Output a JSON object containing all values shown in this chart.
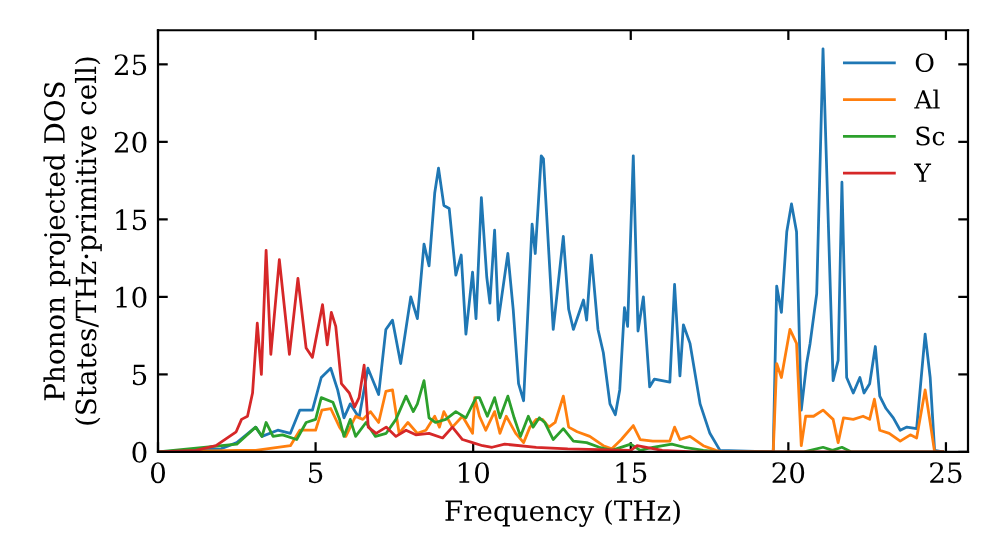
{
  "chart_data": {
    "type": "line",
    "xlabel": "Frequency (THz)",
    "ylabel": "Phonon projected DOS\n(States/THz·primitive cell)",
    "xlim": [
      0,
      25.7
    ],
    "ylim": [
      0,
      27.2
    ],
    "xticks": [
      0,
      5,
      10,
      15,
      20,
      25
    ],
    "yticks": [
      0,
      5,
      10,
      15,
      20,
      25
    ],
    "grid": false,
    "legend": "top right",
    "marker": "none",
    "line_style": "solid",
    "series": [
      {
        "name": "O",
        "color": "#1f77b4",
        "x": [
          0,
          1,
          2,
          2.5,
          3.1,
          3.3,
          3.8,
          4.2,
          4.5,
          4.9,
          5.18,
          5.48,
          5.7,
          5.9,
          6.1,
          6.38,
          6.66,
          7.0,
          7.23,
          7.44,
          7.7,
          8.02,
          8.23,
          8.44,
          8.6,
          8.78,
          8.9,
          9.07,
          9.24,
          9.45,
          9.62,
          9.77,
          9.98,
          10.09,
          10.26,
          10.43,
          10.53,
          10.68,
          10.8,
          11.1,
          11.27,
          11.44,
          11.6,
          11.87,
          11.97,
          12.16,
          12.23,
          12.54,
          12.86,
          13.03,
          13.18,
          13.5,
          13.6,
          13.75,
          13.96,
          14.13,
          14.34,
          14.51,
          14.65,
          14.8,
          14.9,
          15.08,
          15.23,
          15.4,
          15.6,
          15.75,
          16.24,
          16.39,
          16.56,
          16.67,
          16.88,
          17.2,
          17.51,
          17.83,
          19.52,
          19.63,
          19.78,
          19.95,
          20.1,
          20.26,
          20.41,
          20.58,
          20.69,
          20.9,
          21.1,
          21.42,
          21.58,
          21.7,
          21.85,
          22.06,
          22.27,
          22.4,
          22.58,
          22.76,
          22.9,
          23.1,
          23.33,
          23.55,
          23.76,
          24.07,
          24.34,
          24.5,
          24.64,
          24.9
        ],
        "values": [
          0,
          0.1,
          0.2,
          0.6,
          1.6,
          1.0,
          1.4,
          1.2,
          2.7,
          2.7,
          4.8,
          5.4,
          4.0,
          2.2,
          3.1,
          2.2,
          5.4,
          3.7,
          7.9,
          8.5,
          5.7,
          10.0,
          8.6,
          13.4,
          12.0,
          16.7,
          18.3,
          15.9,
          15.7,
          11.4,
          12.7,
          7.6,
          11.6,
          8.6,
          16.4,
          11.3,
          9.6,
          14.3,
          8.5,
          12.8,
          9.2,
          4.4,
          3.3,
          14.7,
          12.8,
          19.1,
          18.9,
          7.9,
          13.9,
          9.2,
          7.9,
          9.8,
          8.5,
          12.7,
          7.9,
          6.4,
          3.1,
          2.4,
          4.0,
          9.3,
          8.1,
          19.1,
          7.8,
          10.0,
          4.2,
          4.7,
          4.5,
          10.8,
          4.9,
          8.2,
          7.0,
          3.1,
          1.2,
          0.1,
          0,
          10.7,
          9.0,
          14.2,
          16.0,
          14.2,
          2.7,
          5.7,
          7.0,
          10.2,
          26.0,
          4.6,
          5.9,
          17.4,
          4.8,
          3.8,
          4.8,
          3.8,
          4.4,
          6.8,
          3.6,
          2.8,
          2.2,
          1.4,
          1.6,
          1.5,
          7.6,
          4.8,
          0.1,
          0
        ]
      },
      {
        "name": "Al",
        "color": "#ff7f0e",
        "x": [
          0,
          2.5,
          3.1,
          4.2,
          4.5,
          5.0,
          5.2,
          5.48,
          5.76,
          5.96,
          6.27,
          6.5,
          6.74,
          7.0,
          7.23,
          7.44,
          7.65,
          7.93,
          8.23,
          8.5,
          8.78,
          8.93,
          9.07,
          9.34,
          9.66,
          9.98,
          10.05,
          10.2,
          10.4,
          10.68,
          10.85,
          11.05,
          11.35,
          11.6,
          11.8,
          12.0,
          12.2,
          12.4,
          12.6,
          12.86,
          13.03,
          13.3,
          13.7,
          14.13,
          14.4,
          14.7,
          15.08,
          15.3,
          15.7,
          16.24,
          16.39,
          16.56,
          16.88,
          17.3,
          17.7,
          17.9,
          19.52,
          19.63,
          19.78,
          20.05,
          20.26,
          20.41,
          20.55,
          20.8,
          21.1,
          21.42,
          21.58,
          21.75,
          22.06,
          22.37,
          22.58,
          22.73,
          22.9,
          23.2,
          23.55,
          23.87,
          24.07,
          24.34,
          24.5,
          24.64,
          24.9
        ],
        "values": [
          0,
          0.1,
          0.1,
          0.4,
          1.4,
          1.4,
          2.7,
          2.8,
          1.6,
          1.0,
          2.3,
          2.1,
          2.6,
          1.9,
          3.9,
          4.0,
          1.2,
          1.9,
          1.2,
          1.4,
          2.3,
          1.6,
          2.6,
          1.6,
          2.3,
          1.2,
          3.5,
          2.3,
          1.4,
          2.6,
          1.2,
          2.3,
          1.2,
          0.6,
          1.6,
          2.1,
          2.1,
          1.6,
          1.9,
          3.6,
          1.6,
          1.3,
          1.0,
          0.4,
          0.2,
          0.8,
          1.7,
          0.8,
          0.7,
          0.7,
          1.6,
          0.8,
          1.0,
          0.4,
          0.1,
          0,
          0,
          5.7,
          4.8,
          7.9,
          7.0,
          0.4,
          2.3,
          2.3,
          2.7,
          2.1,
          0.6,
          2.2,
          2.1,
          2.3,
          2.1,
          3.4,
          1.4,
          1.2,
          0.7,
          1.1,
          0.9,
          4.0,
          1.9,
          0,
          0
        ]
      },
      {
        "name": "Sc",
        "color": "#2ca02c",
        "x": [
          0,
          2.5,
          3.1,
          3.3,
          3.43,
          3.65,
          3.95,
          4.4,
          4.7,
          5.0,
          5.18,
          5.55,
          5.76,
          5.9,
          6.1,
          6.27,
          6.6,
          6.9,
          7.24,
          7.55,
          7.87,
          8.1,
          8.23,
          8.44,
          8.6,
          8.8,
          9.13,
          9.45,
          9.77,
          10.09,
          10.2,
          10.45,
          10.68,
          10.85,
          11.1,
          11.3,
          11.5,
          11.75,
          11.9,
          12.1,
          12.27,
          12.54,
          12.86,
          13.18,
          13.6,
          14.0,
          14.4,
          15.0,
          15.3,
          15.7,
          16.3,
          16.7,
          17.3,
          17.8,
          20.5,
          21.1,
          21.4,
          21.7,
          22.0,
          24.9
        ],
        "values": [
          0,
          0.5,
          1.6,
          1.0,
          1.9,
          1.0,
          1.1,
          0.8,
          1.9,
          2.1,
          3.5,
          3.2,
          2.1,
          1.0,
          2.1,
          1.0,
          1.9,
          1.0,
          1.2,
          2.1,
          3.6,
          2.6,
          3.1,
          4.6,
          2.2,
          1.9,
          2.1,
          2.6,
          2.2,
          3.5,
          3.5,
          2.3,
          3.5,
          2.2,
          3.6,
          2.2,
          1.0,
          2.3,
          1.6,
          2.2,
          1.9,
          0.8,
          1.5,
          0.7,
          0.6,
          0.3,
          0.1,
          0.5,
          0.1,
          0.3,
          0.5,
          0.3,
          0.1,
          0,
          0,
          0.3,
          0.1,
          0.3,
          0,
          0
        ]
      },
      {
        "name": "Y",
        "color": "#d62728",
        "x": [
          0,
          1.2,
          1.84,
          2.27,
          2.48,
          2.65,
          2.84,
          3.0,
          3.15,
          3.28,
          3.43,
          3.58,
          3.85,
          4.17,
          4.44,
          4.7,
          4.9,
          5.22,
          5.37,
          5.5,
          5.64,
          5.82,
          6.07,
          6.24,
          6.38,
          6.54,
          6.67,
          6.92,
          7.24,
          7.55,
          7.87,
          8.18,
          8.6,
          9.03,
          9.34,
          9.66,
          9.98,
          10.3,
          10.6,
          11.0,
          12.0,
          13.0,
          15.0,
          15.2,
          16.0,
          17.0,
          24.9
        ],
        "values": [
          0,
          0.1,
          0.4,
          1.0,
          1.3,
          2.1,
          2.3,
          3.8,
          8.3,
          5.0,
          13.0,
          6.3,
          12.4,
          6.3,
          11.2,
          6.7,
          6.1,
          9.5,
          6.9,
          9.0,
          8.1,
          4.4,
          3.8,
          2.9,
          3.5,
          5.6,
          1.6,
          1.2,
          1.6,
          1.0,
          1.4,
          1.1,
          1.2,
          0.9,
          1.6,
          0.8,
          0.6,
          0.4,
          0.3,
          0.5,
          0.3,
          0.2,
          0.1,
          0.4,
          0.1,
          0,
          0
        ]
      }
    ]
  }
}
